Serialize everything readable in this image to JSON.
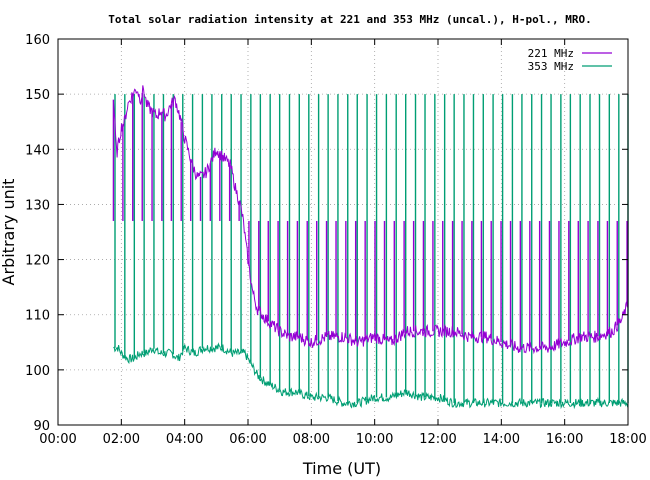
{
  "chart_data": {
    "type": "line",
    "title": "Total solar radiation intensity at 221 and 353 MHz (uncal.), H-pol., MRO.",
    "xlabel": "Time (UT)",
    "ylabel": "Arbitrary unit",
    "xlim": [
      0,
      18
    ],
    "ylim": [
      90,
      160
    ],
    "x_ticks": [
      "00:00",
      "02:00",
      "04:00",
      "06:00",
      "08:00",
      "10:00",
      "12:00",
      "14:00",
      "16:00",
      "18:00"
    ],
    "y_ticks": [
      "90",
      "100",
      "110",
      "120",
      "130",
      "140",
      "150",
      "160"
    ],
    "grid": true,
    "legend_position": "top-right",
    "series": [
      {
        "name": "221 MHz",
        "color": "#9400d3",
        "x": [
          1.75,
          1.85,
          2.0,
          2.1,
          2.2,
          2.35,
          2.5,
          2.6,
          2.7,
          2.8,
          2.95,
          3.1,
          3.25,
          3.4,
          3.55,
          3.7,
          3.85,
          4.0,
          4.1,
          4.25,
          4.4,
          4.55,
          4.7,
          4.85,
          5.0,
          5.15,
          5.3,
          5.45,
          5.6,
          5.75,
          5.85,
          5.95,
          6.05,
          6.15,
          6.3,
          6.45,
          6.6,
          6.8,
          7.0,
          7.3,
          7.6,
          8.0,
          8.5,
          9.0,
          9.5,
          10.0,
          10.5,
          11.0,
          11.5,
          12.0,
          12.5,
          13.0,
          13.5,
          14.0,
          14.5,
          15.0,
          15.5,
          16.0,
          16.5,
          17.0,
          17.5,
          17.8,
          18.0
        ],
        "values": [
          149,
          139,
          144,
          145,
          148,
          150,
          151,
          149,
          151,
          148,
          147,
          146,
          147,
          146,
          148,
          149,
          146,
          142,
          140,
          137,
          135,
          135,
          136,
          138,
          140,
          139,
          138,
          137,
          133,
          130,
          127,
          122,
          118,
          114,
          111,
          110,
          109,
          108,
          107,
          106,
          106,
          105,
          106,
          106,
          105,
          106,
          105,
          107,
          107,
          107,
          107,
          106,
          106,
          105,
          104,
          104,
          104,
          105,
          106,
          106,
          107,
          109,
          112
        ],
        "spikes_x": [
          1.75,
          2.05,
          2.36,
          2.66,
          2.97,
          3.28,
          3.58,
          3.89,
          4.19,
          4.5,
          4.81,
          5.11,
          5.42,
          5.72,
          6.03,
          6.34,
          6.64,
          6.95,
          7.25,
          7.56,
          7.87,
          8.17,
          8.48,
          8.78,
          9.09,
          9.4,
          9.7,
          10.01,
          10.31,
          10.62,
          10.93,
          11.23,
          11.54,
          11.84,
          12.15,
          12.46,
          12.76,
          13.07,
          13.37,
          13.68,
          13.99,
          14.29,
          14.6,
          14.9,
          15.21,
          15.52,
          15.82,
          16.13,
          16.43,
          16.74,
          17.05,
          17.35,
          17.66,
          17.97
        ],
        "spike_peak": 127
      },
      {
        "name": "353 MHz",
        "color": "#009e73",
        "x": [
          1.75,
          1.9,
          2.0,
          2.2,
          2.4,
          2.6,
          2.8,
          3.0,
          3.2,
          3.4,
          3.6,
          3.8,
          4.0,
          4.3,
          4.6,
          4.9,
          5.2,
          5.5,
          5.7,
          5.9,
          6.1,
          6.3,
          6.5,
          6.8,
          7.1,
          7.5,
          8.0,
          8.5,
          9.0,
          9.5,
          10.0,
          10.5,
          11.0,
          11.5,
          12.0,
          12.5,
          13.0,
          13.5,
          14.0,
          14.5,
          15.0,
          15.5,
          16.0,
          16.5,
          17.0,
          17.5,
          18.0
        ],
        "values": [
          104,
          104,
          103,
          102,
          102,
          103,
          103,
          104,
          103,
          103,
          103,
          102,
          104,
          103,
          104,
          104,
          104,
          103,
          103,
          103,
          101,
          99,
          98,
          97,
          96,
          96,
          95,
          95,
          94,
          94,
          95,
          95,
          96,
          95,
          95,
          94,
          94,
          94,
          94,
          94,
          94,
          94,
          94,
          94,
          94,
          94,
          94
        ],
        "spikes_x": [
          1.8,
          2.11,
          2.41,
          2.72,
          3.03,
          3.33,
          3.64,
          3.94,
          4.25,
          4.56,
          4.86,
          5.17,
          5.47,
          5.78,
          6.09,
          6.39,
          6.7,
          7.0,
          7.31,
          7.62,
          7.92,
          8.23,
          8.53,
          8.84,
          9.15,
          9.45,
          9.76,
          10.06,
          10.37,
          10.68,
          10.98,
          11.29,
          11.59,
          11.9,
          12.21,
          12.51,
          12.82,
          13.12,
          13.43,
          13.74,
          14.04,
          14.35,
          14.65,
          14.96,
          15.27,
          15.57,
          15.88,
          16.18,
          16.49,
          16.8,
          17.1,
          17.41,
          17.71,
          18.0
        ],
        "spike_peak": 150
      }
    ]
  }
}
